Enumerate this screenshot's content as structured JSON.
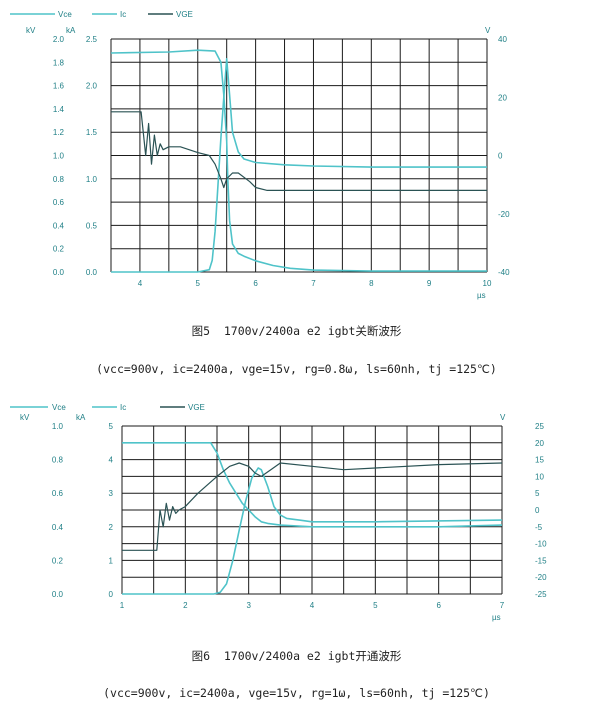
{
  "chart_data": [
    {
      "type": "line",
      "units": {
        "left_outer": "kV",
        "left_inner": "kA",
        "right": "V",
        "x": "µs"
      },
      "legend": [
        "Vce",
        "Ic",
        "VGE"
      ],
      "legend_placement": "top-left",
      "grid": true,
      "x_ticks": [
        "4",
        "5",
        "6",
        "7",
        "8",
        "9",
        "10"
      ],
      "xlim": [
        3.5,
        10
      ],
      "left_outer_ticks": [
        "0.0",
        "0.2",
        "0.4",
        "0.6",
        "0.8",
        "1.0",
        "1.2",
        "1.4",
        "1.6",
        "1.8",
        "2.0"
      ],
      "left_inner_ticks": [
        "0.0",
        "0.5",
        "1.0",
        "1.5",
        "2.0",
        "2.5"
      ],
      "right_ticks": [
        "-40",
        "-20",
        "0",
        "20",
        "40"
      ],
      "ylim_kV": [
        0,
        2.0
      ],
      "ylim_kA": [
        0,
        2.5
      ],
      "ylim_V": [
        -40,
        40
      ],
      "series": [
        {
          "name": "Vce",
          "axis": "kV",
          "color": "#4fc3c9",
          "x": [
            3.5,
            4.5,
            5.0,
            5.2,
            5.25,
            5.3,
            5.35,
            5.4,
            5.45,
            5.5,
            5.55,
            5.6,
            5.7,
            5.8,
            6.0,
            6.5,
            7.0,
            8.0,
            9.0,
            10.0
          ],
          "y": [
            0.0,
            0.0,
            0.0,
            0.02,
            0.1,
            0.35,
            0.75,
            1.15,
            1.5,
            1.83,
            1.52,
            1.2,
            1.03,
            0.97,
            0.94,
            0.92,
            0.91,
            0.9,
            0.9,
            0.9
          ]
        },
        {
          "name": "Ic",
          "axis": "kA",
          "color": "#4fc3c9",
          "x": [
            3.5,
            4.5,
            5.0,
            5.3,
            5.4,
            5.45,
            5.5,
            5.52,
            5.55,
            5.6,
            5.7,
            5.8,
            6.0,
            6.3,
            6.6,
            7.0,
            8.0,
            10.0
          ],
          "y": [
            2.35,
            2.36,
            2.38,
            2.37,
            2.25,
            1.9,
            1.4,
            1.0,
            0.55,
            0.3,
            0.2,
            0.17,
            0.12,
            0.07,
            0.04,
            0.02,
            0.01,
            0.01
          ]
        },
        {
          "name": "VGE",
          "axis": "V",
          "color": "#2a5254",
          "x": [
            3.5,
            4.0,
            4.02,
            4.1,
            4.15,
            4.2,
            4.25,
            4.3,
            4.35,
            4.4,
            4.5,
            4.7,
            5.0,
            5.2,
            5.3,
            5.4,
            5.45,
            5.5,
            5.6,
            5.7,
            5.9,
            6.0,
            6.2,
            6.5,
            7.0,
            8.0,
            9.0,
            10.0
          ],
          "y": [
            15,
            15,
            15,
            0,
            11,
            -3,
            7,
            0,
            4,
            2,
            3,
            3,
            1,
            0,
            -3,
            -8,
            -11,
            -8,
            -6,
            -6,
            -9,
            -11,
            -12,
            -12,
            -12,
            -12,
            -12,
            -12
          ]
        }
      ]
    },
    {
      "type": "line",
      "units": {
        "left_outer": "kV",
        "left_inner": "kA",
        "right": "V",
        "x": "µs"
      },
      "legend": [
        "Vce",
        "Ic",
        "VGE"
      ],
      "legend_placement": "top-left",
      "grid": true,
      "x_ticks": [
        "1",
        "2",
        "3",
        "4",
        "5",
        "6",
        "7"
      ],
      "xlim": [
        1,
        7
      ],
      "left_outer_ticks": [
        "0.0",
        "0.2",
        "0.4",
        "0.6",
        "0.8",
        "1.0"
      ],
      "left_inner_ticks": [
        "0",
        "1",
        "2",
        "3",
        "4",
        "5"
      ],
      "right_ticks": [
        "-25",
        "-20",
        "-15",
        "-10",
        "-5",
        "0",
        "5",
        "10",
        "15",
        "20",
        "25"
      ],
      "ylim_kV": [
        0,
        1.0
      ],
      "ylim_kA": [
        0,
        5
      ],
      "ylim_V": [
        -25,
        25
      ],
      "series": [
        {
          "name": "Vce",
          "axis": "kV",
          "color": "#4fc3c9",
          "x": [
            1,
            2.4,
            2.5,
            2.6,
            2.7,
            2.8,
            2.9,
            3.0,
            3.1,
            3.2,
            3.3,
            3.5,
            4.0,
            5.0,
            6.0,
            7.0
          ],
          "y": [
            0.9,
            0.9,
            0.84,
            0.74,
            0.66,
            0.6,
            0.54,
            0.5,
            0.46,
            0.43,
            0.42,
            0.41,
            0.4,
            0.4,
            0.4,
            0.41
          ]
        },
        {
          "name": "Ic",
          "axis": "kA",
          "color": "#4fc3c9",
          "x": [
            1,
            2.45,
            2.55,
            2.65,
            2.75,
            2.85,
            2.95,
            3.05,
            3.15,
            3.2,
            3.3,
            3.4,
            3.5,
            3.6,
            3.8,
            4.0,
            5.0,
            7.0
          ],
          "y": [
            0,
            0,
            0.05,
            0.3,
            1.0,
            1.9,
            2.75,
            3.45,
            3.75,
            3.7,
            3.2,
            2.6,
            2.35,
            2.25,
            2.2,
            2.15,
            2.15,
            2.2
          ]
        },
        {
          "name": "VGE",
          "axis": "V",
          "color": "#2a5254",
          "x": [
            1,
            1.5,
            1.55,
            1.6,
            1.65,
            1.7,
            1.75,
            1.8,
            1.85,
            1.9,
            2.0,
            2.2,
            2.5,
            2.7,
            2.85,
            3.0,
            3.1,
            3.2,
            3.35,
            3.5,
            4.0,
            4.5,
            5.0,
            6.0,
            7.0
          ],
          "y": [
            -12,
            -12,
            -12,
            0,
            -5,
            2,
            -3,
            1,
            -1,
            0,
            1,
            5,
            10,
            13,
            14,
            13,
            11,
            10,
            12,
            14,
            13,
            12,
            12.5,
            13.5,
            14
          ]
        }
      ]
    }
  ],
  "captions": [
    "图5  1700v/2400a e2 igbt关断波形",
    "(vcc=900v, ic=2400a, vge=15v, rg=0.8ω, ls=60nh, tj =125℃)",
    "图6  1700v/2400a e2 igbt开通波形",
    "(vcc=900v, ic=2400a, vge=15v, rg=1ω, ls=60nh, tj =125℃)"
  ]
}
